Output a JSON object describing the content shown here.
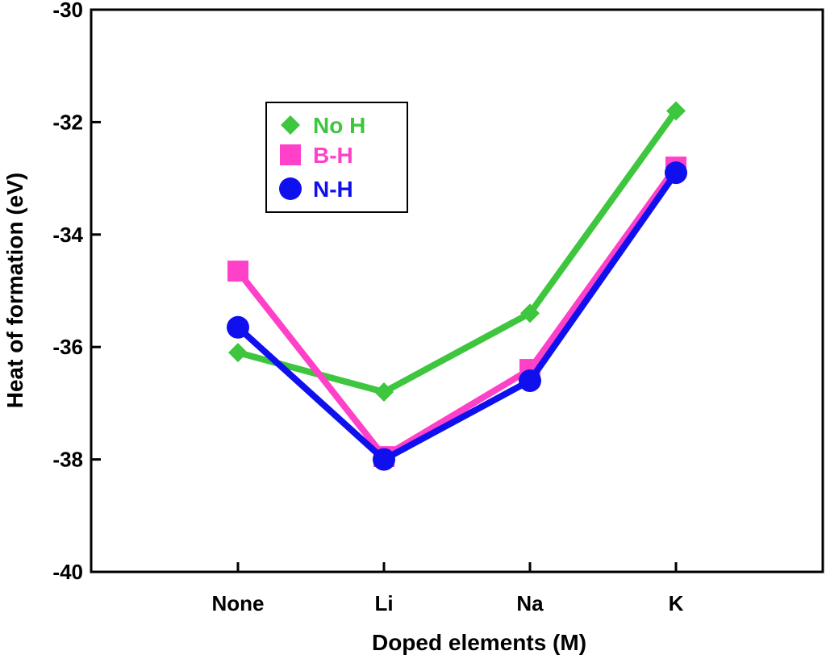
{
  "chart_data": {
    "type": "line",
    "title": "",
    "xlabel": "Doped elements (M)",
    "ylabel": "Heat of formation (eV)",
    "categories": [
      "None",
      "Li",
      "Na",
      "K"
    ],
    "ylim": [
      -40,
      -30
    ],
    "yticks": [
      -40,
      -38,
      -36,
      -34,
      -32,
      -30
    ],
    "ytick_labels": [
      "-40",
      "-38",
      "-36",
      "-34",
      "-32",
      "-30"
    ],
    "grid": false,
    "legend_position": "top-left",
    "series": [
      {
        "name": "No H",
        "color": "#3ec63e",
        "marker": "diamond",
        "values": [
          -36.1,
          -36.8,
          -35.4,
          -31.8
        ]
      },
      {
        "name": "B-H",
        "color": "#ff40c8",
        "marker": "square",
        "values": [
          -34.65,
          -37.95,
          -36.4,
          -32.8
        ]
      },
      {
        "name": "N-H",
        "color": "#1010ee",
        "marker": "circle",
        "values": [
          -35.65,
          -38.0,
          -36.6,
          -32.9
        ]
      }
    ]
  }
}
